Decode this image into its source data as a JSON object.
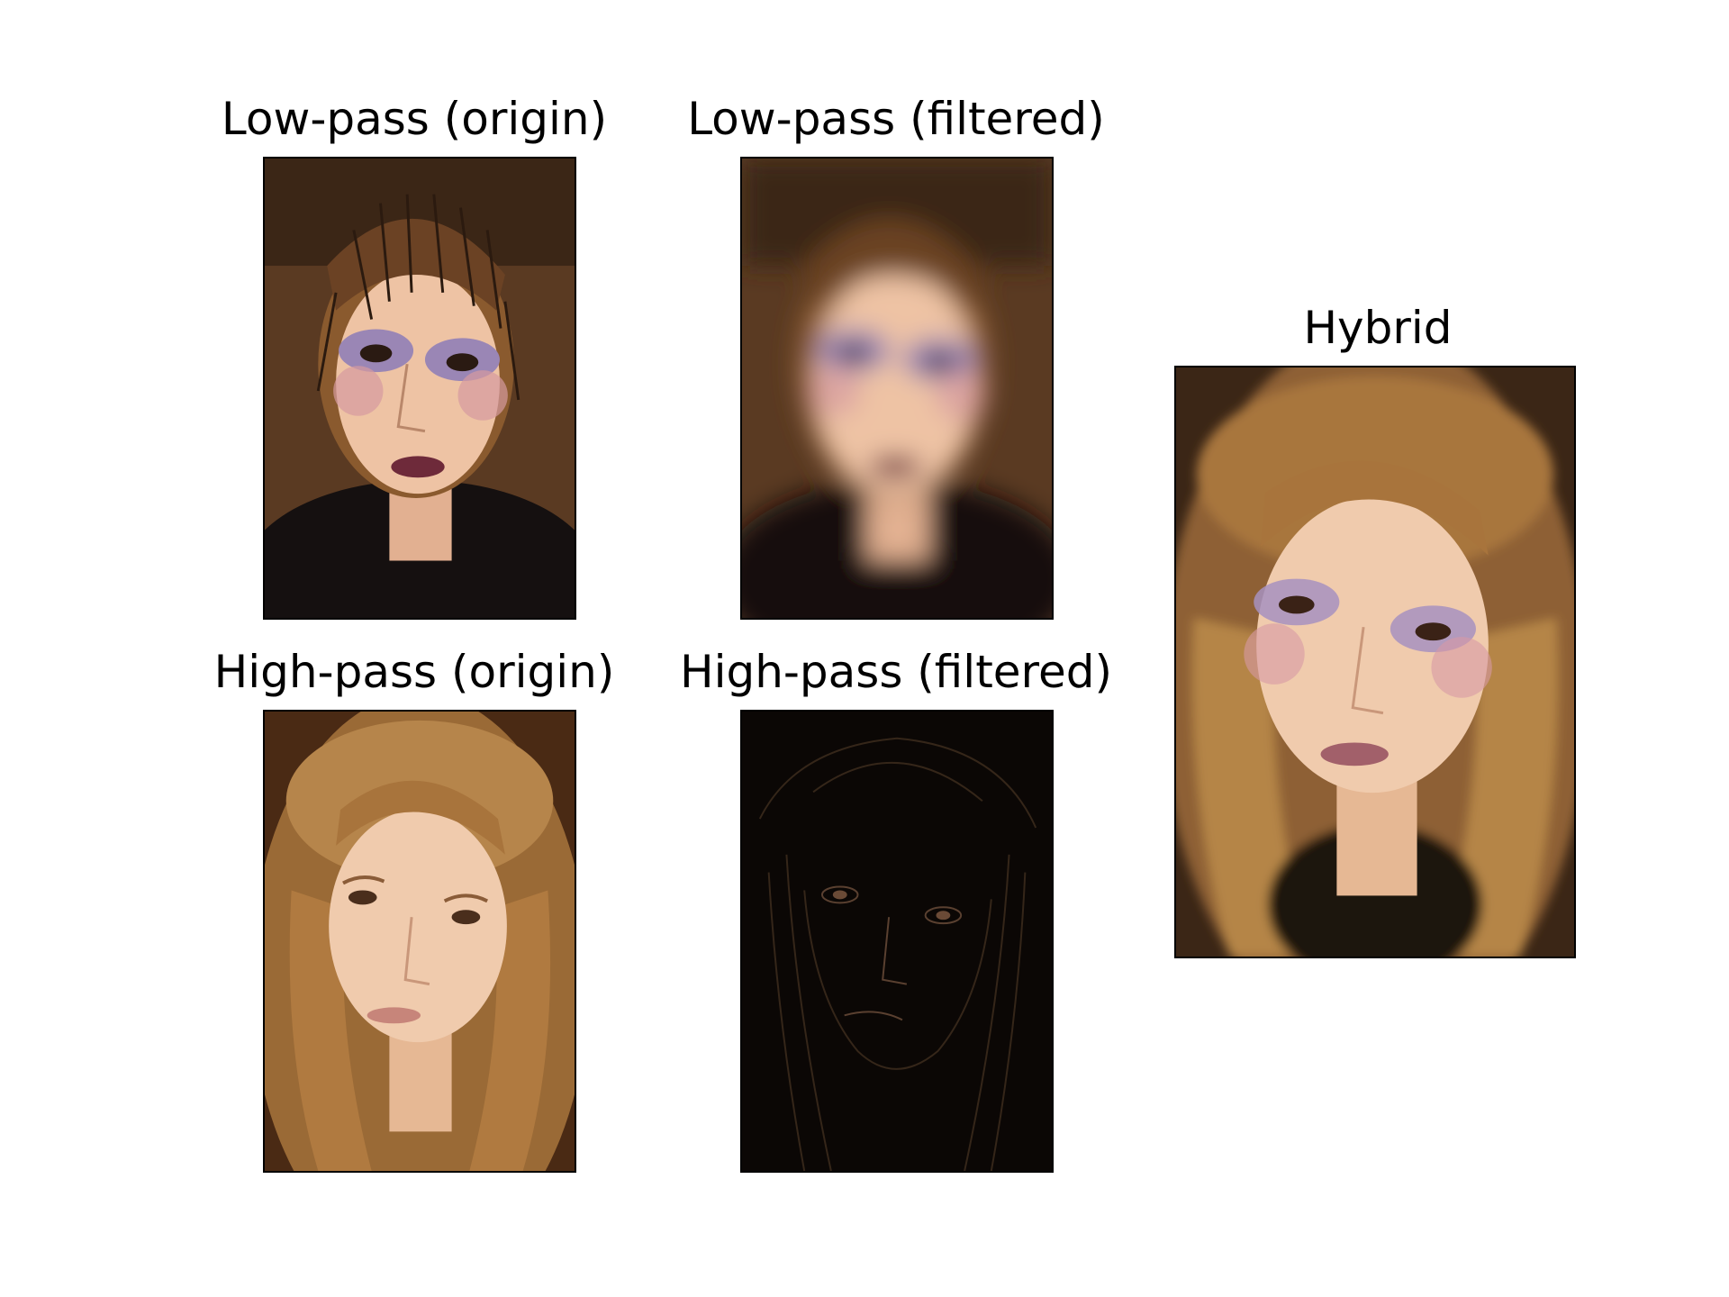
{
  "figure": {
    "panels": [
      {
        "id": "lowpass-origin",
        "title": "Low-pass (origin)",
        "image": "portrait-makeup-hairpins"
      },
      {
        "id": "lowpass-filtered",
        "title": "Low-pass (filtered)",
        "image": "portrait-makeup-hairpins-blurred"
      },
      {
        "id": "highpass-origin",
        "title": "High-pass (origin)",
        "image": "portrait-natural-long-hair"
      },
      {
        "id": "highpass-filtered",
        "title": "High-pass (filtered)",
        "image": "portrait-edges-dark"
      },
      {
        "id": "hybrid",
        "title": "Hybrid",
        "image": "portrait-hybrid"
      }
    ]
  },
  "colors": {
    "background": "#ffffff",
    "frame": "#000000",
    "hair_brown": "#8a5a2e",
    "skin": "#e9bfa0",
    "eyeshadow": "#9a86b5",
    "lips_dark": "#6e2a3a",
    "dark_bg": "#0b0705"
  }
}
